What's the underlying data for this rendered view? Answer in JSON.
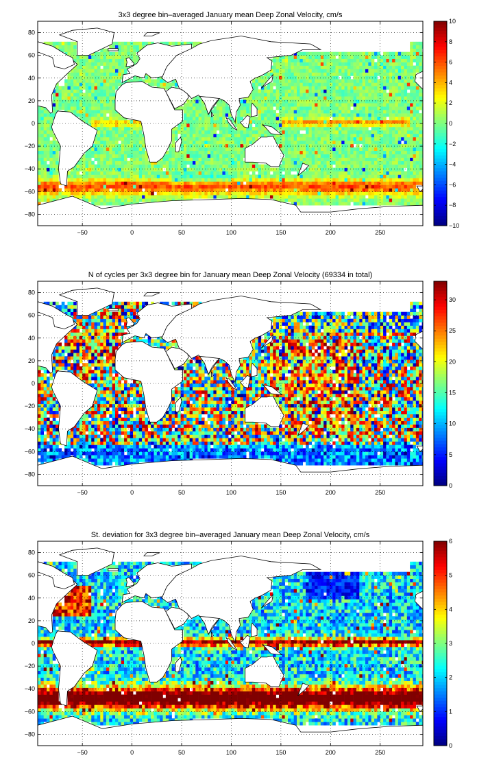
{
  "figure": {
    "panels": [
      {
        "title": "3x3 degree bin–averaged January mean Deep Zonal Velocity, cm/s",
        "colorbar": {
          "min": -10,
          "max": 10,
          "ticks": [
            "10",
            "8",
            "6",
            "4",
            "2",
            "0",
            "−2",
            "−4",
            "−6",
            "−8",
            "−10"
          ]
        },
        "field": "velocity"
      },
      {
        "title": "N of cycles per 3x3 degree bin for January mean Deep Zonal Velocity (69334 in total)",
        "colorbar": {
          "min": 0,
          "max": 33,
          "ticks": [
            "30",
            "25",
            "20",
            "15",
            "10",
            "5",
            "0"
          ],
          "tick_values": [
            30,
            25,
            20,
            15,
            10,
            5,
            0
          ]
        },
        "field": "count"
      },
      {
        "title": "St. deviation for 3x3 degree bin–averaged January mean Deep Zonal Velocity, cm/s",
        "colorbar": {
          "min": 0,
          "max": 6,
          "ticks": [
            "6",
            "5",
            "4",
            "3",
            "2",
            "1",
            "0"
          ]
        },
        "field": "stdev"
      }
    ],
    "x_axis": {
      "range": [
        -95,
        293
      ],
      "ticks": [
        -50,
        0,
        50,
        100,
        150,
        200,
        250
      ],
      "tick_labels": [
        "−50",
        "0",
        "50",
        "100",
        "150",
        "200",
        "250"
      ]
    },
    "y_axis": {
      "range": [
        -90,
        90
      ],
      "ticks": [
        80,
        60,
        40,
        20,
        0,
        -20,
        -40,
        -60,
        -80
      ],
      "tick_labels": [
        "80",
        "60",
        "40",
        "20",
        "0",
        "−20",
        "−40",
        "−60",
        "−80"
      ]
    },
    "grid": "dotted",
    "colormap": "jet",
    "bin_size_deg": 3
  }
}
